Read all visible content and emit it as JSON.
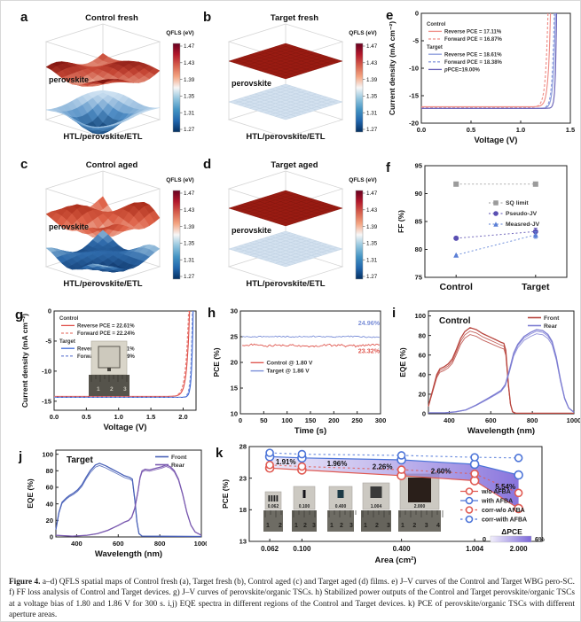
{
  "letters": {
    "a": "a",
    "b": "b",
    "c": "c",
    "d": "d",
    "e": "e",
    "f": "f",
    "g": "g",
    "h": "h",
    "i": "i",
    "j": "j",
    "k": "k"
  },
  "caption": {
    "label": "Figure 4.",
    "text": "a–d) QFLS spatial maps of Control fresh (a), Target fresh (b), Control aged (c) and Target aged (d) films. e) J–V curves of the Control and Target WBG pero-SC. f) FF loss analysis of Control and Target devices. g) J–V curves of perovskite/organic TSCs. h) Stabilized power outputs of the Control and Target perovskite/organic TSCs at a voltage bias of 1.80 and 1.86 V for 300 s. i,j) EQE spectra in different regions of the Control and Target devices. k) PCE of perovskite/organic TSCs with different aperture areas."
  },
  "chart_data": [
    {
      "panel": "a",
      "type": "surface3d",
      "title": "Control fresh",
      "labels": [
        "perovskite",
        "HTL/perovskite/ETL"
      ],
      "colorbar": {
        "title": "QFLS (eV)",
        "ticks": [
          "1.47",
          "1.43",
          "1.39",
          "1.35",
          "1.31",
          "1.27"
        ]
      },
      "top": {
        "shape": "ridges",
        "amp": 0.5,
        "seed": 1,
        "dip": -0.5,
        "stops": [
          "#f2b8a2",
          "#c84836",
          "#7c100c"
        ]
      },
      "bottom": {
        "shape": "ridges",
        "amp": 0.3,
        "seed": 2,
        "dip": -2.1,
        "stops": [
          "#0b3a6b",
          "#4f8cc4",
          "#d8e8f5"
        ]
      }
    },
    {
      "panel": "b",
      "type": "surface3d",
      "title": "Target fresh",
      "labels": [
        "perovskite",
        "HTL/perovskite/ETL"
      ],
      "colorbar": {
        "title": "QFLS (eV)",
        "ticks": [
          "1.47",
          "1.43",
          "1.39",
          "1.35",
          "1.31",
          "1.27"
        ]
      },
      "top": {
        "shape": "flat",
        "color": "#9a1b12",
        "grid": "#85150d"
      },
      "bottom": {
        "shape": "flat",
        "color": "#d3e1ef",
        "grid": "#bed0e2"
      }
    },
    {
      "panel": "c",
      "type": "surface3d",
      "title": "Control aged",
      "labels": [
        "perovskite",
        "HTL/perovskite/ETL"
      ],
      "colorbar": {
        "title": "QFLS (eV)",
        "ticks": [
          "1.47",
          "1.43",
          "1.39",
          "1.35",
          "1.31",
          "1.27"
        ]
      },
      "top": {
        "shape": "ridges",
        "amp": 1.0,
        "seed": 3,
        "dip": -0.3,
        "stops": [
          "#f6d8c8",
          "#de6248",
          "#a62816"
        ]
      },
      "bottom": {
        "shape": "ridges",
        "amp": 0.55,
        "seed": 5,
        "dip": -0.9,
        "stops": [
          "#0d3468",
          "#2e6aaa",
          "#a8cce4"
        ]
      }
    },
    {
      "panel": "d",
      "type": "surface3d",
      "title": "Target aged",
      "labels": [
        "perovskite",
        "HTL/perovskite/ETL"
      ],
      "colorbar": {
        "title": "QFLS (eV)",
        "ticks": [
          "1.47",
          "1.43",
          "1.39",
          "1.35",
          "1.31",
          "1.27"
        ]
      },
      "top": {
        "shape": "flat",
        "color": "#9a1b12",
        "grid": "#85150d"
      },
      "bottom": {
        "shape": "flat",
        "color": "#d3e1ef",
        "grid": "#bed0e2"
      }
    },
    {
      "panel": "e",
      "type": "jv",
      "xlabel": "Voltage (V)",
      "ylabel": "Current density (mA cm⁻²)",
      "xlim": [
        0,
        1.5
      ],
      "ylim": [
        -20,
        0
      ],
      "xticks": [
        "0.0",
        "0.5",
        "1.0",
        "1.5"
      ],
      "yticks": [
        "0",
        "-5",
        "-10",
        "-15",
        "-20"
      ],
      "legend": [
        {
          "header": "Control",
          "items": [
            {
              "label": "Reverse PCE = 17.11%",
              "color": "#ef8e88",
              "dash": false
            },
            {
              "label": "Forward PCE = 16.87%",
              "color": "#ef8e88",
              "dash": true
            }
          ]
        },
        {
          "header": "Target",
          "items": [
            {
              "label": "Reverse PCE = 18.61%",
              "color": "#8b9bdc",
              "dash": false
            },
            {
              "label": "Forward PCE = 18.38%",
              "color": "#8b9bdc",
              "dash": true
            },
            {
              "label": "pPCE=19.00%",
              "color": "#6a63b8",
              "dash": false
            }
          ]
        }
      ],
      "curves": [
        {
          "jsc": 17.0,
          "voc": 1.3,
          "w": 0.022,
          "color": "#ef8e88",
          "dash": false
        },
        {
          "jsc": 17.1,
          "voc": 1.275,
          "w": 0.024,
          "color": "#ef8e88",
          "dash": true
        },
        {
          "jsc": 17.3,
          "voc": 1.35,
          "w": 0.02,
          "color": "#8b9bdc",
          "dash": false
        },
        {
          "jsc": 17.3,
          "voc": 1.338,
          "w": 0.02,
          "color": "#8b9bdc",
          "dash": true
        },
        {
          "jsc": 17.3,
          "voc": 1.362,
          "w": 0.012,
          "color": "#6a63b8",
          "dash": false
        }
      ]
    },
    {
      "panel": "f",
      "type": "ff",
      "ylabel": "FF (%)",
      "ylim": [
        75,
        95
      ],
      "yticks": [
        "75",
        "80",
        "85",
        "90",
        "95"
      ],
      "categories": [
        "Control",
        "Target"
      ],
      "series": [
        {
          "name": "SQ limit",
          "marker": "square",
          "color": "#9b9b9b",
          "values": [
            91.7,
            91.7
          ],
          "err": [
            0,
            0
          ]
        },
        {
          "name": "Pseudo-JV",
          "marker": "circle",
          "color": "#5a4fb2",
          "values": [
            82.0,
            83.2
          ],
          "err": [
            0,
            0.6
          ]
        },
        {
          "name": "Measred-JV",
          "marker": "triangle",
          "color": "#5b7fd6",
          "values": [
            79.0,
            82.6
          ],
          "err": [
            0,
            0.6
          ]
        }
      ]
    },
    {
      "panel": "g",
      "type": "jv",
      "xlabel": "Voltage (V)",
      "ylabel": "Current density (mA cm⁻²)",
      "xlim": [
        0,
        2.2
      ],
      "ylim": [
        -16.5,
        0
      ],
      "xticks": [
        "0.0",
        "0.5",
        "1.0",
        "1.5",
        "2.0"
      ],
      "yticks": [
        "0",
        "-5",
        "-10",
        "-15"
      ],
      "legend": [
        {
          "header": "Control",
          "items": [
            {
              "label": "Reverse PCE = 22.61%",
              "color": "#e0514c",
              "dash": false
            },
            {
              "label": "Forward PCE = 22.24%",
              "color": "#e87f76",
              "dash": true
            }
          ]
        },
        {
          "header": "Target",
          "items": [
            {
              "label": "Reverse PCE = 25.21%",
              "color": "#3f6ad8",
              "dash": false
            },
            {
              "label": "Forward PCE = 24.99%",
              "color": "#7b8fd8",
              "dash": true
            }
          ]
        }
      ],
      "curves": [
        {
          "jsc": 14.2,
          "voc": 2.1,
          "w": 0.042,
          "color": "#e0514c",
          "dash": false
        },
        {
          "jsc": 14.25,
          "voc": 2.085,
          "w": 0.045,
          "color": "#e87f76",
          "dash": true
        },
        {
          "jsc": 14.35,
          "voc": 2.155,
          "w": 0.022,
          "color": "#3f6ad8",
          "dash": false
        },
        {
          "jsc": 14.35,
          "voc": 2.145,
          "w": 0.024,
          "color": "#7b8fd8",
          "dash": true
        }
      ],
      "inset_ruler": [
        "1",
        "2",
        "3"
      ]
    },
    {
      "panel": "h",
      "type": "spo",
      "xlabel": "Time (s)",
      "ylabel": "PCE (%)",
      "xlim": [
        0,
        300
      ],
      "ylim": [
        10,
        30
      ],
      "xticks": [
        "0",
        "50",
        "100",
        "150",
        "200",
        "250",
        "300"
      ],
      "yticks": [
        "10",
        "15",
        "20",
        "25",
        "30"
      ],
      "series": [
        {
          "name": "Control @ 1.80 V",
          "color": "#e05a52",
          "base": 23.3,
          "amp": 0.28,
          "label": "23.32%",
          "label_y": 21.8
        },
        {
          "name": "Target  @ 1.86 V",
          "color": "#7b8fd8",
          "base": 25.0,
          "amp": 0.16,
          "label": "24.96%",
          "label_y": 27.2
        }
      ]
    },
    {
      "panel": "i",
      "type": "eqe",
      "title": "Control",
      "xlabel": "Wavelength (nm)",
      "ylabel": "EQE (%)",
      "xlim": [
        300,
        1000
      ],
      "ylim": [
        0,
        105
      ],
      "xticks": [
        "400",
        "600",
        "800",
        "1000"
      ],
      "yticks": [
        "0",
        "20",
        "40",
        "60",
        "80",
        "100"
      ],
      "series": [
        {
          "name": "Front",
          "color": "#b8463f",
          "variants": [
            1.0,
            0.96,
            0.92
          ]
        },
        {
          "name": "Rear",
          "color": "#7d7dd2",
          "variants": [
            1.0,
            0.98,
            0.95
          ]
        }
      ],
      "front_pts": [
        [
          300,
          8
        ],
        [
          320,
          24
        ],
        [
          340,
          40
        ],
        [
          355,
          46
        ],
        [
          375,
          48
        ],
        [
          395,
          51
        ],
        [
          415,
          56
        ],
        [
          435,
          66
        ],
        [
          455,
          77
        ],
        [
          475,
          84
        ],
        [
          500,
          88
        ],
        [
          530,
          86
        ],
        [
          560,
          82
        ],
        [
          590,
          79
        ],
        [
          620,
          76
        ],
        [
          650,
          73
        ],
        [
          663,
          72
        ],
        [
          672,
          65
        ],
        [
          685,
          30
        ],
        [
          695,
          10
        ],
        [
          705,
          2
        ],
        [
          720,
          0.5
        ],
        [
          1000,
          0.5
        ]
      ],
      "rear_pts": [
        [
          300,
          1
        ],
        [
          380,
          1
        ],
        [
          430,
          2
        ],
        [
          480,
          4
        ],
        [
          530,
          9
        ],
        [
          580,
          15
        ],
        [
          620,
          20
        ],
        [
          650,
          24
        ],
        [
          670,
          30
        ],
        [
          690,
          45
        ],
        [
          710,
          62
        ],
        [
          730,
          71
        ],
        [
          760,
          79
        ],
        [
          790,
          83
        ],
        [
          820,
          86
        ],
        [
          850,
          85
        ],
        [
          875,
          81
        ],
        [
          895,
          74
        ],
        [
          915,
          58
        ],
        [
          935,
          35
        ],
        [
          955,
          16
        ],
        [
          975,
          6
        ],
        [
          1000,
          1.5
        ]
      ]
    },
    {
      "panel": "j",
      "type": "eqe",
      "title": "Target",
      "xlabel": "Wavelength (nm)",
      "ylabel": "EQE (%)",
      "xlim": [
        300,
        1000
      ],
      "ylim": [
        0,
        105
      ],
      "xticks": [
        "400",
        "600",
        "800",
        "1000"
      ],
      "yticks": [
        "0",
        "20",
        "40",
        "60",
        "80",
        "100"
      ],
      "series": [
        {
          "name": "Front",
          "color": "#4a62b8",
          "variants": [
            1.0,
            0.97
          ]
        },
        {
          "name": "Rear",
          "color": "#7a5ab0",
          "variants": [
            1.0,
            0.98
          ]
        }
      ],
      "front_pts": [
        [
          300,
          9
        ],
        [
          315,
          30
        ],
        [
          330,
          42
        ],
        [
          350,
          47
        ],
        [
          365,
          50
        ],
        [
          385,
          53
        ],
        [
          405,
          57
        ],
        [
          425,
          63
        ],
        [
          445,
          72
        ],
        [
          465,
          80
        ],
        [
          490,
          87
        ],
        [
          510,
          89
        ],
        [
          540,
          86
        ],
        [
          570,
          82
        ],
        [
          600,
          78
        ],
        [
          630,
          74
        ],
        [
          655,
          72
        ],
        [
          668,
          70
        ],
        [
          680,
          45
        ],
        [
          690,
          18
        ],
        [
          700,
          4
        ],
        [
          715,
          1
        ],
        [
          1000,
          0.5
        ]
      ],
      "rear_pts": [
        [
          300,
          2
        ],
        [
          380,
          1
        ],
        [
          450,
          2
        ],
        [
          500,
          4
        ],
        [
          550,
          8
        ],
        [
          600,
          14
        ],
        [
          630,
          18
        ],
        [
          650,
          20
        ],
        [
          665,
          24
        ],
        [
          680,
          35
        ],
        [
          695,
          55
        ],
        [
          705,
          72
        ],
        [
          715,
          80
        ],
        [
          730,
          82
        ],
        [
          750,
          81
        ],
        [
          780,
          83
        ],
        [
          810,
          85
        ],
        [
          830,
          87
        ],
        [
          850,
          85
        ],
        [
          870,
          80
        ],
        [
          890,
          70
        ],
        [
          910,
          52
        ],
        [
          930,
          30
        ],
        [
          950,
          14
        ],
        [
          970,
          6
        ],
        [
          1000,
          2
        ]
      ]
    },
    {
      "panel": "k",
      "type": "area",
      "xlabel": "Area (cm²)",
      "ylabel": "PCE (%)",
      "ylim": [
        13,
        28
      ],
      "yticks": [
        "13",
        "18",
        "23",
        "28"
      ],
      "categories": [
        "0.062",
        "0.100",
        "0.400",
        "1.004",
        "2.000"
      ],
      "cat_fx": [
        0.07,
        0.18,
        0.52,
        0.77,
        0.92
      ],
      "series": [
        {
          "name": "w/o  AFBA",
          "color": "#e05a52",
          "dash": false,
          "values": [
            24.6,
            24.3,
            23.4,
            22.6,
            18.2
          ]
        },
        {
          "name": "with AFBA",
          "color": "#4c74d8",
          "dash": false,
          "values": [
            26.4,
            26.2,
            25.9,
            25.2,
            23.5
          ]
        },
        {
          "name": "corr-w/o  AFBA",
          "color": "#e05a52",
          "dash": true,
          "values": [
            25.09,
            24.84,
            24.34,
            23.7,
            20.66
          ]
        },
        {
          "name": "corr-with AFBA",
          "color": "#4c74d8",
          "dash": true,
          "values": [
            27.0,
            26.8,
            26.6,
            26.3,
            26.2
          ]
        }
      ],
      "annotations": [
        {
          "text": "1.91%",
          "fx": 0.125,
          "y": 25.2
        },
        {
          "text": "1.96%",
          "fx": 0.3,
          "y": 24.95
        },
        {
          "text": "2.26%",
          "fx": 0.455,
          "y": 24.45
        },
        {
          "text": "2.60%",
          "fx": 0.655,
          "y": 23.75
        },
        {
          "text": "5.54%",
          "fx": 0.875,
          "y": 21.3
        }
      ],
      "delta_label": "ΔPCE",
      "delta_scale": [
        "0",
        "6%"
      ],
      "samples": [
        {
          "label": "0.062",
          "ruler": [
            "1",
            "2"
          ]
        },
        {
          "label": "0.100",
          "ruler": [
            "1",
            "2",
            "3"
          ]
        },
        {
          "label": "0.400",
          "ruler": [
            "1",
            "2",
            "3"
          ]
        },
        {
          "label": "1.004",
          "ruler": [
            "1",
            "2",
            "3"
          ]
        },
        {
          "label": "2.000",
          "ruler": [
            "1",
            "2",
            "3",
            "4"
          ]
        }
      ]
    }
  ]
}
